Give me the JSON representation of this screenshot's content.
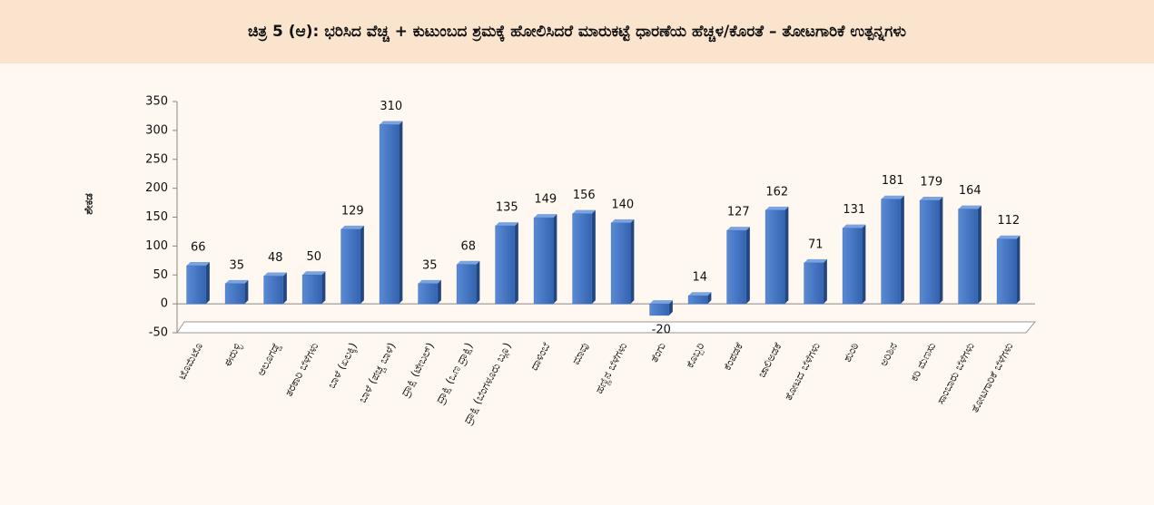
{
  "chart_data": {
    "type": "bar",
    "title": "ಚಿತ್ರ 5 (ಆ): ಭರಿಸಿದ ವೆಚ್ಚ + ಕುಟುಂಬದ ಶ್ರಮಕ್ಕೆ ಹೋಲಿಸಿದರೆ ಮಾರುಕಟ್ಟೆ ಧಾರಣೆಯ ಹೆಚ್ಚಳ/ಕೊರತೆ – ತೋಟಗಾರಿಕೆ ಉತ್ಪನ್ನಗಳು",
    "y_label": "ಶೇಕಡ",
    "categories": [
      "ಟೊಮೆಟೊ",
      "ಈರುಳ್ಳಿ",
      "ಆಲೂಗಡ್ಡೆ",
      "ತರಕಾರಿ ಬೆಳೆಗಳು",
      "ಬಾಳೆ (ಏಲಕ್ಕಿ)",
      "ಬಾಳೆ (ಪಚ್ಚ ಬಾಳೆ)",
      "ದ್ರಾಕ್ಷಿ (ಟೇಬಲ್)",
      "ದ್ರಾಕ್ಷಿ (ಒಣ ದ್ರಾಕ್ಷಿ)",
      "ದ್ರಾಕ್ಷಿ (ಬೆಂಗಳೂರು ಬ್ಲೂ)",
      "ದಾಳಿಂಬೆ",
      "ಮಾವು",
      "ಹಣ್ಣಿನ ಬೆಳೆಗಳು",
      "ತೆಂಗು",
      "ಕೊಬ್ಬರಿ",
      "ಕೆಂಪಡಕೆ",
      "ಚಾಲಿಅಡಕೆ",
      "ತೋಟದ ಬೆಳೆಗಳು",
      "ಶುಂಠಿ",
      "ಅರಿಶಿನ",
      "ಕರಿ ಮೆಣಸು",
      "ಸಾಂಬಾರು ಬೆಳೆಗಳು",
      "ತೋಟಗಾರಿಕೆ ಬೆಳೆಗಳು"
    ],
    "values": [
      66,
      35,
      48,
      50,
      129,
      310,
      35,
      68,
      135,
      149,
      156,
      140,
      -20,
      14,
      127,
      162,
      71,
      131,
      181,
      179,
      164,
      112
    ],
    "color": "#3f72c0",
    "ylim": [
      -50,
      350
    ],
    "yticks": [
      -50,
      0,
      50,
      100,
      150,
      200,
      250,
      300,
      350
    ]
  }
}
